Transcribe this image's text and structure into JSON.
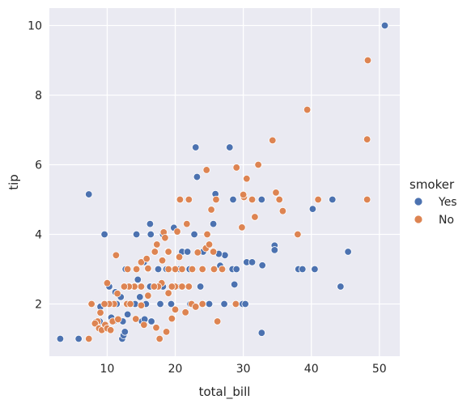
{
  "chart_data": {
    "type": "scatter",
    "title": "",
    "xlabel": "total_bill",
    "ylabel": "tip",
    "xlim": [
      1.5,
      53
    ],
    "ylim": [
      0.5,
      10.5
    ],
    "xticks": [
      10,
      20,
      30,
      40,
      50
    ],
    "yticks": [
      2,
      4,
      6,
      8,
      10
    ],
    "grid": true,
    "legend": {
      "title": "smoker",
      "position": "right"
    },
    "series": [
      {
        "name": "Yes",
        "color": "#4c72b0",
        "points": [
          [
            50.8,
            10.0
          ],
          [
            7.3,
            5.15
          ],
          [
            23.0,
            6.5
          ],
          [
            28.0,
            6.5
          ],
          [
            23.2,
            5.65
          ],
          [
            28.5,
            5.0
          ],
          [
            32.7,
            5.0
          ],
          [
            43.1,
            5.0
          ],
          [
            40.2,
            4.73
          ],
          [
            25.9,
            5.16
          ],
          [
            16.3,
            4.3
          ],
          [
            9.6,
            4.0
          ],
          [
            14.3,
            4.0
          ],
          [
            16.4,
            4.0
          ],
          [
            18.2,
            4.0
          ],
          [
            19.8,
            4.19
          ],
          [
            22.8,
            4.0
          ],
          [
            25.6,
            4.3
          ],
          [
            21.0,
            3.5
          ],
          [
            34.6,
            3.68
          ],
          [
            34.6,
            3.55
          ],
          [
            45.4,
            3.5
          ],
          [
            27.3,
            3.4
          ],
          [
            24.1,
            3.5
          ],
          [
            26.6,
            3.1
          ],
          [
            28.4,
            3.0
          ],
          [
            29.0,
            3.0
          ],
          [
            30.5,
            3.2
          ],
          [
            31.3,
            3.2
          ],
          [
            32.8,
            3.11
          ],
          [
            38.1,
            3.0
          ],
          [
            38.7,
            3.0
          ],
          [
            40.5,
            3.0
          ],
          [
            16.0,
            3.0
          ],
          [
            18.7,
            3.0
          ],
          [
            20.6,
            3.0
          ],
          [
            22.1,
            3.0
          ],
          [
            15.4,
            3.2
          ],
          [
            17.5,
            3.0
          ],
          [
            12.7,
            3.0
          ],
          [
            13.3,
            2.5
          ],
          [
            14.5,
            2.7
          ],
          [
            16.3,
            2.5
          ],
          [
            17.9,
            2.5
          ],
          [
            20.8,
            2.5
          ],
          [
            23.7,
            2.5
          ],
          [
            28.7,
            2.56
          ],
          [
            44.3,
            2.5
          ],
          [
            10.3,
            2.5
          ],
          [
            11.2,
            2.34
          ],
          [
            12.0,
            2.2
          ],
          [
            13.4,
            2.0
          ],
          [
            14.8,
            2.2
          ],
          [
            15.7,
            2.0
          ],
          [
            17.8,
            2.0
          ],
          [
            18.2,
            2.5
          ],
          [
            19.4,
            2.0
          ],
          [
            22.2,
            2.0
          ],
          [
            24.1,
            2.0
          ],
          [
            25.0,
            2.0
          ],
          [
            27.2,
            2.0
          ],
          [
            29.9,
            2.0
          ],
          [
            30.3,
            2.0
          ],
          [
            8.3,
            1.48
          ],
          [
            8.9,
            1.5
          ],
          [
            9.0,
            1.92
          ],
          [
            10.6,
            1.61
          ],
          [
            11.0,
            1.5
          ],
          [
            11.4,
            2.0
          ],
          [
            12.3,
            1.5
          ],
          [
            13.0,
            1.7
          ],
          [
            14.1,
            2.0
          ],
          [
            15.1,
            1.5
          ],
          [
            15.5,
            1.56
          ],
          [
            16.5,
            1.5
          ],
          [
            12.2,
            1.0
          ],
          [
            12.4,
            1.1
          ],
          [
            12.6,
            1.2
          ],
          [
            3.1,
            1.0
          ],
          [
            5.8,
            1.0
          ],
          [
            32.7,
            1.17
          ],
          [
            26.4,
            3.44
          ],
          [
            21.8,
            3.5
          ],
          [
            18.9,
            3.5
          ]
        ]
      },
      {
        "name": "No",
        "color": "#dd8452",
        "points": [
          [
            48.3,
            9.0
          ],
          [
            39.4,
            7.58
          ],
          [
            48.2,
            6.73
          ],
          [
            34.3,
            6.7
          ],
          [
            32.2,
            6.0
          ],
          [
            29.0,
            5.92
          ],
          [
            30.5,
            5.6
          ],
          [
            24.6,
            5.85
          ],
          [
            26.0,
            5.0
          ],
          [
            20.7,
            5.0
          ],
          [
            22.0,
            5.0
          ],
          [
            30.1,
            5.07
          ],
          [
            30.0,
            5.14
          ],
          [
            31.3,
            5.0
          ],
          [
            34.8,
            5.2
          ],
          [
            35.3,
            5.0
          ],
          [
            41.0,
            5.0
          ],
          [
            48.2,
            5.0
          ],
          [
            35.8,
            4.67
          ],
          [
            31.7,
            4.5
          ],
          [
            29.8,
            4.2
          ],
          [
            25.3,
            4.71
          ],
          [
            24.7,
            4.0
          ],
          [
            21.7,
            4.3
          ],
          [
            20.3,
            4.08
          ],
          [
            18.3,
            4.06
          ],
          [
            18.5,
            3.9
          ],
          [
            17.3,
            3.71
          ],
          [
            17.0,
            3.5
          ],
          [
            15.0,
            3.2
          ],
          [
            14.3,
            3.0
          ],
          [
            13.0,
            3.0
          ],
          [
            11.3,
            3.4
          ],
          [
            10.0,
            2.6
          ],
          [
            19.0,
            3.5
          ],
          [
            20.6,
            3.35
          ],
          [
            23.3,
            3.48
          ],
          [
            24.5,
            3.6
          ],
          [
            25.0,
            3.71
          ],
          [
            25.6,
            3.5
          ],
          [
            38.0,
            4.0
          ],
          [
            26.9,
            3.0
          ],
          [
            25.7,
            3.0
          ],
          [
            24.0,
            3.0
          ],
          [
            22.5,
            3.0
          ],
          [
            21.0,
            3.0
          ],
          [
            20.0,
            3.0
          ],
          [
            19.0,
            3.0
          ],
          [
            18.1,
            3.25
          ],
          [
            16.0,
            3.02
          ],
          [
            15.8,
            3.3
          ],
          [
            22.0,
            2.5
          ],
          [
            21.0,
            2.5
          ],
          [
            20.0,
            2.5
          ],
          [
            19.5,
            2.5
          ],
          [
            19.0,
            2.31
          ],
          [
            18.0,
            2.6
          ],
          [
            17.5,
            2.5
          ],
          [
            16.9,
            2.5
          ],
          [
            16.0,
            2.24
          ],
          [
            15.0,
            2.5
          ],
          [
            14.0,
            2.5
          ],
          [
            13.2,
            2.5
          ],
          [
            12.5,
            2.5
          ],
          [
            11.5,
            2.3
          ],
          [
            11.0,
            2.0
          ],
          [
            10.3,
            2.0
          ],
          [
            9.6,
            2.0
          ],
          [
            9.0,
            1.75
          ],
          [
            8.6,
            1.5
          ],
          [
            7.7,
            2.0
          ],
          [
            8.2,
            1.44
          ],
          [
            8.8,
            1.3
          ],
          [
            9.2,
            1.25
          ],
          [
            9.7,
            1.4
          ],
          [
            10.0,
            1.3
          ],
          [
            10.5,
            1.25
          ],
          [
            10.8,
            1.5
          ],
          [
            11.6,
            1.56
          ],
          [
            12.9,
            2.0
          ],
          [
            13.4,
            2.0
          ],
          [
            14.2,
            1.57
          ],
          [
            15.0,
            1.96
          ],
          [
            15.4,
            1.4
          ],
          [
            17.2,
            1.32
          ],
          [
            17.7,
            1.0
          ],
          [
            18.7,
            1.2
          ],
          [
            19.5,
            1.58
          ],
          [
            20.0,
            1.84
          ],
          [
            21.5,
            1.76
          ],
          [
            22.4,
            2.0
          ],
          [
            23.0,
            1.92
          ],
          [
            24.0,
            2.0
          ],
          [
            26.2,
            1.5
          ],
          [
            28.9,
            2.0
          ],
          [
            7.3,
            1.0
          ]
        ]
      }
    ]
  }
}
